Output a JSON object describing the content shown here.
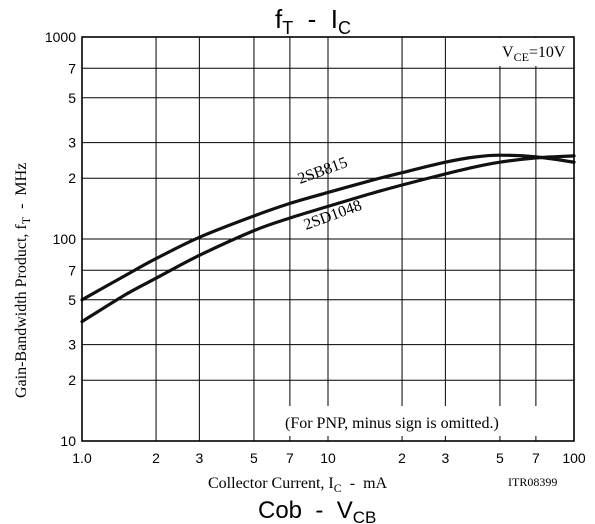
{
  "chart_data": {
    "type": "line",
    "title": {
      "main": "f",
      "main_sub": "T",
      "sep": "  -  ",
      "second": "I",
      "second_sub": "C"
    },
    "bottom_title": {
      "main": "Cob",
      "sep": "  -  ",
      "second": "V",
      "second_sub": "CB"
    },
    "xlabel": {
      "pre": "Collector Current, I",
      "sub": "C",
      "post": "  -  mA"
    },
    "ylabel": {
      "pre": "Gain-Bandwidth Product, f",
      "sub": "T",
      "post": "  -  MHz"
    },
    "x_scale": "log",
    "y_scale": "log",
    "xlim": [
      1,
      100
    ],
    "ylim": [
      10,
      1000
    ],
    "grid": true,
    "x_ticks": [
      {
        "v": 1,
        "t": "1.0"
      },
      {
        "v": 2,
        "t": "2"
      },
      {
        "v": 3,
        "t": "3"
      },
      {
        "v": 5,
        "t": "5"
      },
      {
        "v": 7,
        "t": "7"
      },
      {
        "v": 10,
        "t": "10"
      },
      {
        "v": 20,
        "t": "2"
      },
      {
        "v": 30,
        "t": "3"
      },
      {
        "v": 50,
        "t": "5"
      },
      {
        "v": 70,
        "t": "7"
      },
      {
        "v": 100,
        "t": "100"
      }
    ],
    "y_ticks": [
      {
        "v": 10,
        "t": "10"
      },
      {
        "v": 20,
        "t": "2"
      },
      {
        "v": 30,
        "t": "3"
      },
      {
        "v": 50,
        "t": "5"
      },
      {
        "v": 70,
        "t": "7"
      },
      {
        "v": 100,
        "t": "100"
      },
      {
        "v": 200,
        "t": "2"
      },
      {
        "v": 300,
        "t": "3"
      },
      {
        "v": 500,
        "t": "5"
      },
      {
        "v": 700,
        "t": "7"
      },
      {
        "v": 1000,
        "t": "1000"
      }
    ],
    "condition": {
      "pre": "V",
      "sub": "CE",
      "post": "=10V"
    },
    "note": "(For PNP, minus sign is omitted.)",
    "code": "ITR08399",
    "series": [
      {
        "name": "2SB815",
        "x": [
          1.0,
          1.5,
          2,
          3,
          5,
          7,
          10,
          15,
          20,
          30,
          40,
          50,
          70,
          100
        ],
        "y": [
          50,
          66,
          80,
          102,
          130,
          150,
          170,
          195,
          213,
          240,
          255,
          260,
          255,
          240
        ]
      },
      {
        "name": "2SD1048",
        "x": [
          1.0,
          1.5,
          2,
          3,
          5,
          7,
          10,
          15,
          20,
          30,
          40,
          50,
          70,
          100
        ],
        "y": [
          39,
          53,
          64,
          83,
          110,
          127,
          145,
          168,
          185,
          210,
          228,
          240,
          252,
          258
        ]
      }
    ]
  }
}
